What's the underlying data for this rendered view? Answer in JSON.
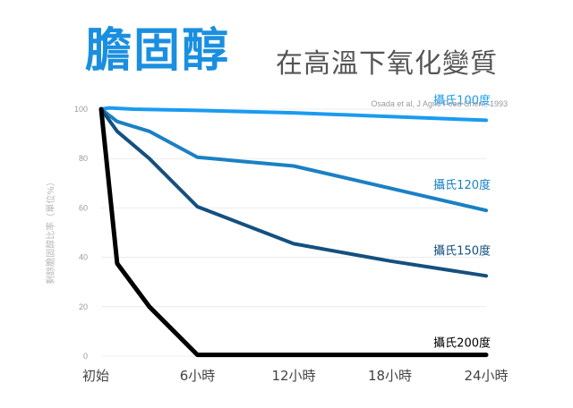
{
  "title_main": "膽固醇",
  "title_sub": "在高溫下氧化變質",
  "source": "Osada et al, J Agric Food Chem, 1993",
  "chart_data": {
    "type": "line",
    "ylabel": "剩餘膽固醇比率（單位%）",
    "xlabel": "",
    "ylim": [
      0,
      100
    ],
    "yticks": [
      0,
      20,
      40,
      60,
      80,
      100
    ],
    "x_hours": [
      0,
      6,
      12,
      18,
      24
    ],
    "x_labels": [
      "初始",
      "6小時",
      "12小時",
      "18小時",
      "24小時"
    ],
    "grid": "horizontal",
    "series": [
      {
        "name": "攝氏100度",
        "color": "#1a9bf0",
        "x": [
          0,
          0.5,
          2,
          6,
          12,
          18,
          24
        ],
        "y": [
          100,
          100.5,
          100,
          99.5,
          98.5,
          97,
          95.5
        ]
      },
      {
        "name": "攝氏120度",
        "color": "#1b80c4",
        "x": [
          0,
          1,
          3,
          6,
          12,
          18,
          24
        ],
        "y": [
          100,
          95,
          91,
          80.5,
          77,
          68,
          59
        ]
      },
      {
        "name": "攝氏150度",
        "color": "#14507f",
        "x": [
          0,
          1,
          3,
          6,
          12,
          18,
          24
        ],
        "y": [
          100,
          91,
          80,
          60.5,
          45.5,
          38.5,
          32.5
        ]
      },
      {
        "name": "攝氏200度",
        "color": "#000000",
        "x": [
          0,
          1,
          3,
          6,
          12,
          18,
          24
        ],
        "y": [
          100,
          37.5,
          20,
          0.5,
          0.5,
          0.5,
          0.5
        ]
      }
    ]
  }
}
